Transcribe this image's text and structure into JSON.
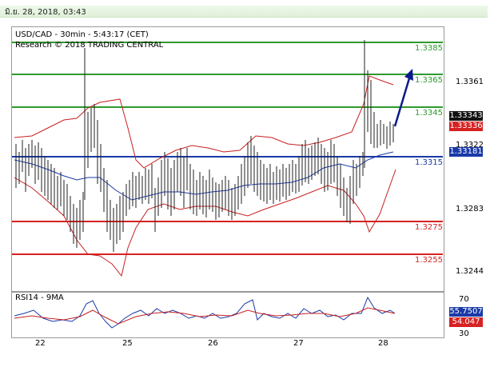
{
  "date_header": "มิ.ย. 28, 2018, 03:43",
  "chart": {
    "title_line1": "USD/CAD - 30min - 5:43:17 (CET)",
    "title_line2": "Research © 2018 TRADING CENTRAL",
    "y_ticks": [
      "1.3361",
      "1.3322",
      "1.3283",
      "1.3244"
    ],
    "levels": [
      {
        "label": "1.3385",
        "color": "#2e9a2e"
      },
      {
        "label": "1.3365",
        "color": "#2e9a2e"
      },
      {
        "label": "1.3345",
        "color": "#2e9a2e"
      },
      {
        "label": "1.3315",
        "color": "#1a3aa8"
      },
      {
        "label": "1.3275",
        "color": "#d62222"
      },
      {
        "label": "1.3255",
        "color": "#d62222"
      }
    ],
    "price_tags": [
      {
        "label": "1.33343",
        "color": "#111111"
      },
      {
        "label": "1.33336",
        "color": "#d62222"
      },
      {
        "label": "1.33181",
        "color": "#1a3aa8"
      }
    ],
    "x_ticks": [
      "22",
      "25",
      "26",
      "27",
      "28"
    ]
  },
  "rsi": {
    "title": "RSI14 - 9MA",
    "y_ticks": [
      "70",
      "30"
    ],
    "tags": [
      {
        "label": "55.7507",
        "color": "#1a3aa8"
      },
      {
        "label": "54.047",
        "color": "#d62222"
      }
    ]
  },
  "colors": {
    "support": "#d62222",
    "resistance": "#2e9a2e",
    "pivot": "#1a3aa8",
    "arrow": "#0a1a8a"
  }
}
